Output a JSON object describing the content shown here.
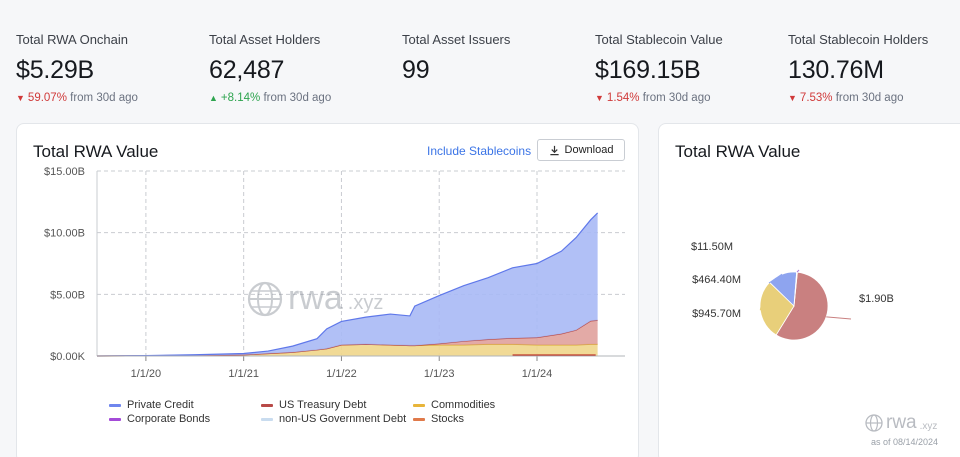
{
  "stats": [
    {
      "label": "Total RWA Onchain",
      "value": "$5.29B",
      "delta": "59.07%",
      "direction": "down",
      "suffix": "from 30d ago"
    },
    {
      "label": "Total Asset Holders",
      "value": "62,487",
      "delta": "+8.14%",
      "direction": "up",
      "suffix": "from 30d ago"
    },
    {
      "label": "Total Asset Issuers",
      "value": "99",
      "delta": "",
      "direction": "",
      "suffix": ""
    },
    {
      "label": "Total Stablecoin Value",
      "value": "$169.15B",
      "delta": "1.54%",
      "direction": "down",
      "suffix": "from 30d ago"
    },
    {
      "label": "Total Stablecoin Holders",
      "value": "130.76M",
      "delta": "7.53%",
      "direction": "down",
      "suffix": "from 30d ago"
    }
  ],
  "main_card": {
    "title": "Total RWA Value",
    "include_label": "Include Stablecoins",
    "download_label": "Download",
    "watermark": "rwa",
    "watermark_suffix": ".xyz"
  },
  "pie_card": {
    "title": "Total RWA Value",
    "watermark": "rwa",
    "watermark_suffix": ".xyz",
    "as_of": "as of 08/14/2024"
  },
  "colors": {
    "private_credit": "#7b93f0",
    "us_treasury": "#c0504d",
    "commodities": "#e8c04a",
    "corporate_bonds": "#a44bd8",
    "non_us_gov": "#c9dcef",
    "stocks": "#e07a4a",
    "up": "#2ea44f",
    "down": "#d03a3a",
    "link": "#3b74e6"
  },
  "chart_data": [
    {
      "type": "area",
      "title": "Total RWA Value",
      "y_ticks": [
        "$0.00K",
        "$5.00B",
        "$10.00B",
        "$15.00B"
      ],
      "x_ticks": [
        "1/1/20",
        "1/1/21",
        "1/1/22",
        "1/1/23",
        "1/1/24"
      ],
      "ylim": [
        0,
        15
      ],
      "y_unit": "B",
      "stacked": true,
      "grid": true,
      "legend_position": "bottom",
      "legend": [
        {
          "name": "Private Credit",
          "color": "#7b93f0"
        },
        {
          "name": "US Treasury Debt",
          "color": "#c0504d"
        },
        {
          "name": "Commodities",
          "color": "#e8c04a"
        },
        {
          "name": "Corporate Bonds",
          "color": "#a44bd8"
        },
        {
          "name": "non-US Government Debt",
          "color": "#c9dcef"
        },
        {
          "name": "Stocks",
          "color": "#e07a4a"
        }
      ],
      "x": [
        2019.5,
        2020.0,
        2020.5,
        2021.0,
        2021.25,
        2021.5,
        2021.75,
        2021.85,
        2022.0,
        2022.25,
        2022.5,
        2022.7,
        2022.75,
        2023.0,
        2023.25,
        2023.5,
        2023.75,
        2024.0,
        2024.25,
        2024.4,
        2024.55,
        2024.62
      ],
      "series": [
        {
          "name": "Commodities",
          "values": [
            0.0,
            0.02,
            0.05,
            0.1,
            0.2,
            0.3,
            0.5,
            0.6,
            0.9,
            0.95,
            0.9,
            0.85,
            0.85,
            0.9,
            0.9,
            0.95,
            0.95,
            0.9,
            0.9,
            0.9,
            0.95,
            0.95
          ]
        },
        {
          "name": "US Treasury Debt",
          "values": [
            0.0,
            0.0,
            0.0,
            0.0,
            0.0,
            0.0,
            0.0,
            0.0,
            0.0,
            0.0,
            0.0,
            0.0,
            0.0,
            0.1,
            0.3,
            0.4,
            0.5,
            0.6,
            0.9,
            1.2,
            1.9,
            1.95
          ]
        },
        {
          "name": "Private Credit",
          "values": [
            0.0,
            0.01,
            0.05,
            0.1,
            0.2,
            0.5,
            0.9,
            1.6,
            1.9,
            2.2,
            2.5,
            2.4,
            3.2,
            3.9,
            4.5,
            5.0,
            5.7,
            6.0,
            6.7,
            7.5,
            8.2,
            8.7
          ]
        }
      ]
    },
    {
      "type": "pie",
      "title": "Total RWA Value",
      "slices": [
        {
          "name": "US Treasury Debt",
          "label": "$1.90B",
          "value": 1.9,
          "color": "#c98080"
        },
        {
          "name": "Commodities",
          "label": "$945.70M",
          "value": 0.9457,
          "color": "#e8cf7a"
        },
        {
          "name": "Private Credit",
          "label": "$464.40M",
          "value": 0.4644,
          "color": "#8ea4ef"
        },
        {
          "name": "Corporate Bonds",
          "label": "$11.50M",
          "value": 0.0115,
          "color": "#b07ad8"
        }
      ]
    }
  ]
}
